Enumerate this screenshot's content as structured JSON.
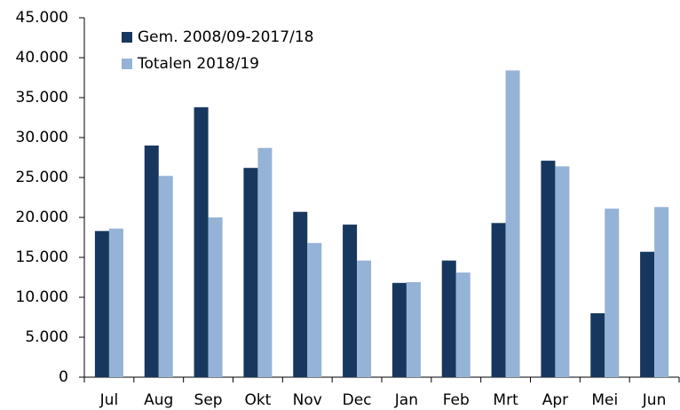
{
  "chart_data": {
    "type": "bar",
    "categories": [
      "Jul",
      "Aug",
      "Sep",
      "Okt",
      "Nov",
      "Dec",
      "Jan",
      "Feb",
      "Mrt",
      "Apr",
      "Mei",
      "Jun"
    ],
    "series": [
      {
        "name": "Gem. 2008/09-2017/18",
        "color": "#17375e",
        "values": [
          18300,
          29000,
          33800,
          26200,
          20700,
          19100,
          11800,
          14600,
          19300,
          27100,
          8000,
          15700
        ]
      },
      {
        "name": "Totalen 2018/19",
        "color": "#95b3d7",
        "values": [
          18600,
          25200,
          20000,
          28700,
          16800,
          14600,
          11900,
          13100,
          38400,
          26400,
          21100,
          21300
        ]
      }
    ],
    "ylim": [
      0,
      45000
    ],
    "yticks": [
      0,
      {
        "value": 5000,
        "label": "5.000"
      },
      {
        "value": 10000,
        "label": "10.000"
      },
      {
        "value": 15000,
        "label": "15.000"
      },
      {
        "value": 20000,
        "label": "20.000"
      },
      {
        "value": 25000,
        "label": "25.000"
      },
      {
        "value": 30000,
        "label": "30.000"
      },
      {
        "value": 35000,
        "label": "35.000"
      },
      {
        "value": 40000,
        "label": "40.000"
      },
      {
        "value": 45000,
        "label": "45.000"
      }
    ],
    "grid": false,
    "legend": "top-left"
  }
}
